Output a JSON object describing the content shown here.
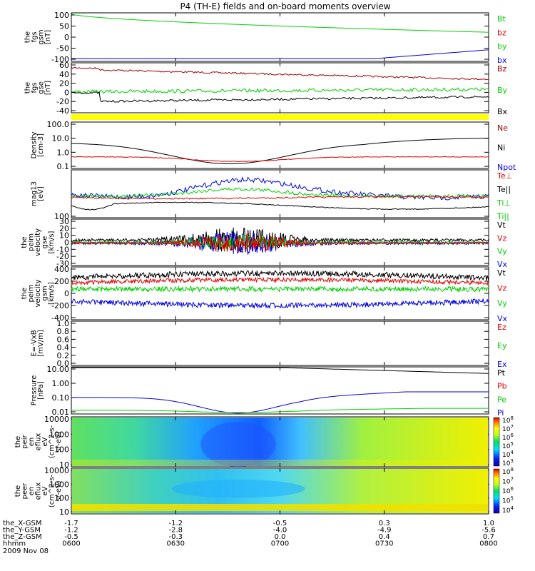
{
  "title": "P4 (TH-E) fields and on-board moments overview",
  "date_label": "2009 Nov 08",
  "colors": {
    "black": "#000000",
    "red": "#e00000",
    "green": "#00d000",
    "blue": "#0000e0",
    "darkred": "#a00000",
    "yellow": "#ffff00"
  },
  "bottom_axis": {
    "row_labels": [
      "the_X-GSM",
      "the_Y-GSM",
      "the_Z-GSM",
      "hhmm"
    ],
    "columns": [
      [
        "-1.7",
        "-1.2",
        "-0.5",
        "0600"
      ],
      [
        "-1.2",
        "-2.8",
        "-0.3",
        "0630"
      ],
      [
        "-0.5",
        "-4.0",
        "0.0",
        "0700"
      ],
      [
        "0.3",
        "-4.9",
        "0.4",
        "0730"
      ],
      [
        "1.0",
        "-5.6",
        "0.7",
        "0800"
      ]
    ]
  },
  "chart_data": [
    {
      "id": "p1",
      "type": "line",
      "ylabel": [
        "the",
        "fgs",
        "gsm",
        "[nT]"
      ],
      "ylim": [
        -100,
        100
      ],
      "ticks": [
        "100",
        "50",
        "0",
        "-50",
        "-100"
      ],
      "legend": [
        {
          "name": "Bt",
          "color": "green"
        },
        {
          "name": "bz",
          "color": "red"
        },
        {
          "name": "by",
          "color": "green"
        },
        {
          "name": "bx",
          "color": "blue"
        }
      ]
    },
    {
      "id": "p2",
      "type": "line",
      "ylabel": [
        "the",
        "fgs",
        "gse",
        "[nT]"
      ],
      "ylim": [
        -50,
        60
      ],
      "ticks": [
        "60",
        "40",
        "20",
        "0",
        "-20",
        "-40"
      ],
      "legend": [
        {
          "name": "Bz",
          "color": "darkred"
        },
        {
          "name": "By",
          "color": "green"
        },
        {
          "name": "Bx",
          "color": "black"
        }
      ]
    },
    {
      "id": "p3",
      "type": "line",
      "ylabel": [
        "Density",
        "[cm-3]"
      ],
      "log": true,
      "ticks": [
        "100.0",
        "10.0",
        "1.0",
        "0.1"
      ],
      "legend": [
        {
          "name": "Ne",
          "color": "darkred"
        },
        {
          "name": "Ni",
          "color": "black"
        },
        {
          "name": "Npot",
          "color": "blue"
        }
      ]
    },
    {
      "id": "p4",
      "type": "line",
      "ylabel": [
        "mag13",
        "[eV]"
      ],
      "log": true,
      "ticks": [
        "100"
      ],
      "legend": [
        {
          "name": "Te⊥",
          "color": "red"
        },
        {
          "name": "Te||",
          "color": "black"
        },
        {
          "name": "Ti⊥",
          "color": "green"
        },
        {
          "name": "Ti||",
          "color": "green"
        }
      ]
    },
    {
      "id": "p5",
      "type": "line",
      "ylabel": [
        "the",
        "peim",
        "velocity",
        "gse",
        "[km/s]"
      ],
      "ylim": [
        -30,
        30
      ],
      "ticks": [
        "30",
        "20",
        "10",
        "0",
        "-10",
        "-20",
        "-30"
      ],
      "legend": [
        {
          "name": "Vt",
          "color": "black"
        },
        {
          "name": "Vz",
          "color": "red"
        },
        {
          "name": "Vy",
          "color": "green"
        },
        {
          "name": "Vx",
          "color": "blue"
        }
      ]
    },
    {
      "id": "p6",
      "type": "line",
      "ylabel": [
        "the",
        "peim",
        "velocity",
        "gsm",
        "[km/s]"
      ],
      "ylim": [
        -400,
        400
      ],
      "ticks": [
        "400",
        "200",
        "0",
        "-200",
        "-400"
      ],
      "legend": [
        {
          "name": "Vt",
          "color": "black"
        },
        {
          "name": "Vz",
          "color": "red"
        },
        {
          "name": "Vy",
          "color": "green"
        },
        {
          "name": "Vx",
          "color": "blue"
        }
      ]
    },
    {
      "id": "p7",
      "type": "line",
      "ylabel": [
        "E=-VxB",
        "[mV/m]"
      ],
      "ylim": [
        0,
        1
      ],
      "ticks": [
        "1.0",
        "0.8",
        "0.6",
        "0.4",
        "0.2",
        "0.0"
      ],
      "legend": [
        {
          "name": "Ez",
          "color": "red"
        },
        {
          "name": "Ey",
          "color": "green"
        },
        {
          "name": "Ex",
          "color": "blue"
        }
      ]
    },
    {
      "id": "p8",
      "type": "line",
      "ylabel": [
        "Pressure",
        "[nPa]"
      ],
      "log": true,
      "ticks": [
        "10.00",
        "1.00",
        "0.10",
        "0.01"
      ],
      "legend": [
        {
          "name": "Pt",
          "color": "black"
        },
        {
          "name": "Pb",
          "color": "red"
        },
        {
          "name": "Pe",
          "color": "green"
        },
        {
          "name": "Pi",
          "color": "blue"
        }
      ]
    },
    {
      "id": "p9",
      "type": "heatmap",
      "ylabel": [
        "the",
        "peir",
        "en",
        "eflux",
        "eV",
        "(cm^2-s-",
        "sr-eV)"
      ],
      "ticks": [
        "10000",
        "1000",
        "100",
        "10"
      ],
      "colorbar": [
        "10^8",
        "10^7",
        "10^6",
        "10^5",
        "10^4",
        "10^3"
      ]
    },
    {
      "id": "p10",
      "type": "heatmap",
      "ylabel": [
        "the",
        "peer",
        "en",
        "eflux",
        "eV",
        "(cm^2-s-",
        "sr-eV)"
      ],
      "ticks": [
        "10000",
        "1000",
        "100",
        "10"
      ],
      "colorbar": [
        "10^8",
        "10^7",
        "10^6",
        "10^5",
        "10^4"
      ]
    }
  ]
}
